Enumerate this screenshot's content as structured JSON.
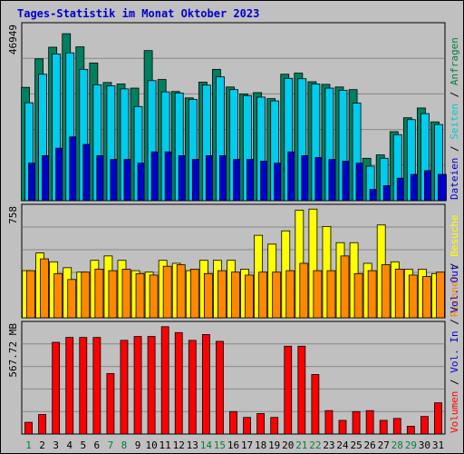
{
  "chart_data": {
    "type": "bar",
    "title": "Tages-Statistik im Monat Oktober 2023",
    "categories": [
      "1",
      "2",
      "3",
      "4",
      "5",
      "6",
      "7",
      "8",
      "9",
      "10",
      "11",
      "12",
      "13",
      "14",
      "15",
      "16",
      "17",
      "18",
      "19",
      "20",
      "21",
      "22",
      "23",
      "24",
      "25",
      "26",
      "27",
      "28",
      "29",
      "30",
      "31"
    ],
    "weekend_days": [
      1,
      7,
      8,
      14,
      15,
      21,
      22,
      28,
      29
    ],
    "panels": [
      {
        "name": "top",
        "ymax_label": "46949",
        "ymax": 46949,
        "right_labels": [
          {
            "text": "Dateien",
            "color": "#0000cc"
          },
          {
            "text": " / ",
            "color": "#000000"
          },
          {
            "text": "Seiten",
            "color": "#00cccc"
          },
          {
            "text": " / ",
            "color": "#000000"
          },
          {
            "text": "Anfragen",
            "color": "#008040"
          }
        ],
        "series": [
          {
            "name": "Anfragen",
            "color": "#008060",
            "values": [
              30200,
              37800,
              40900,
              44500,
              41000,
              36700,
              31500,
              31100,
              30000,
              40000,
              32300,
              29100,
              27400,
              31600,
              35000,
              30300,
              28400,
              28800,
              27200,
              33700,
              34000,
              31700,
              31000,
              30300,
              29600,
              11300,
              12200,
              18400,
              22100,
              24700,
              21000
            ]
          },
          {
            "name": "Seiten",
            "color": "#00ccee",
            "values": [
              26100,
              33700,
              39100,
              39400,
              35000,
              30900,
              30600,
              29800,
              25100,
              32000,
              29000,
              28700,
              27000,
              30800,
              33000,
              29600,
              28000,
              27600,
              26600,
              32600,
              32500,
              31100,
              30000,
              29400,
              26000,
              9200,
              11300,
              17600,
              21600,
              23200,
              20300
            ]
          },
          {
            "name": "Dateien",
            "color": "#0000cc",
            "values": [
              10000,
              12000,
              14000,
              17000,
              15000,
              12000,
              11000,
              11000,
              10000,
              13000,
              13000,
              12000,
              11000,
              12000,
              12000,
              11000,
              11000,
              10500,
              10000,
              13000,
              12000,
              11500,
              11000,
              10500,
              10000,
              3000,
              4000,
              6000,
              7000,
              8000,
              7000
            ]
          }
        ]
      },
      {
        "name": "middle",
        "ymax_label": "758",
        "ymax": 758,
        "right_labels": [
          {
            "text": "Rechner",
            "color": "#ff8000"
          },
          {
            "text": " / ",
            "color": "#000000"
          },
          {
            "text": "Besuche",
            "color": "#ffff00"
          }
        ],
        "series": [
          {
            "name": "Besuche",
            "color": "#ffff00",
            "values": [
              320,
              440,
              380,
              340,
              310,
              390,
              420,
              390,
              320,
              310,
              390,
              370,
              320,
              390,
              390,
              390,
              330,
              560,
              500,
              590,
              730,
              738,
              620,
              510,
              510,
              370,
              630,
              380,
              330,
              330,
              300
            ]
          },
          {
            "name": "Rechner",
            "color": "#ff8800",
            "values": [
              320,
              400,
              300,
              260,
              310,
              330,
              320,
              330,
              300,
              290,
              350,
              360,
              330,
              300,
              320,
              310,
              290,
              310,
              310,
              320,
              370,
              320,
              320,
              420,
              300,
              320,
              360,
              330,
              290,
              280,
              310
            ]
          }
        ]
      },
      {
        "name": "bottom",
        "ymax_label": "567.72 MB",
        "ymax": 567.72,
        "right_labels": [
          {
            "text": "Volumen",
            "color": "#ff0000"
          },
          {
            "text": " / ",
            "color": "#000000"
          },
          {
            "text": "Vol. In",
            "color": "#0000cc"
          },
          {
            "text": " / ",
            "color": "#000000"
          },
          {
            "text": "Vol. Out",
            "color": "#0000cc"
          }
        ],
        "series": [
          {
            "name": "Volumen",
            "color": "#ff0000",
            "values": [
              60,
              100,
              470,
              495,
              495,
              495,
              310,
              480,
              500,
              500,
              550,
              520,
              480,
              510,
              475,
              115,
              85,
              105,
              85,
              450,
              450,
              305,
              120,
              70,
              115,
              120,
              70,
              80,
              40,
              90,
              160
            ]
          }
        ]
      }
    ],
    "grid": true
  }
}
